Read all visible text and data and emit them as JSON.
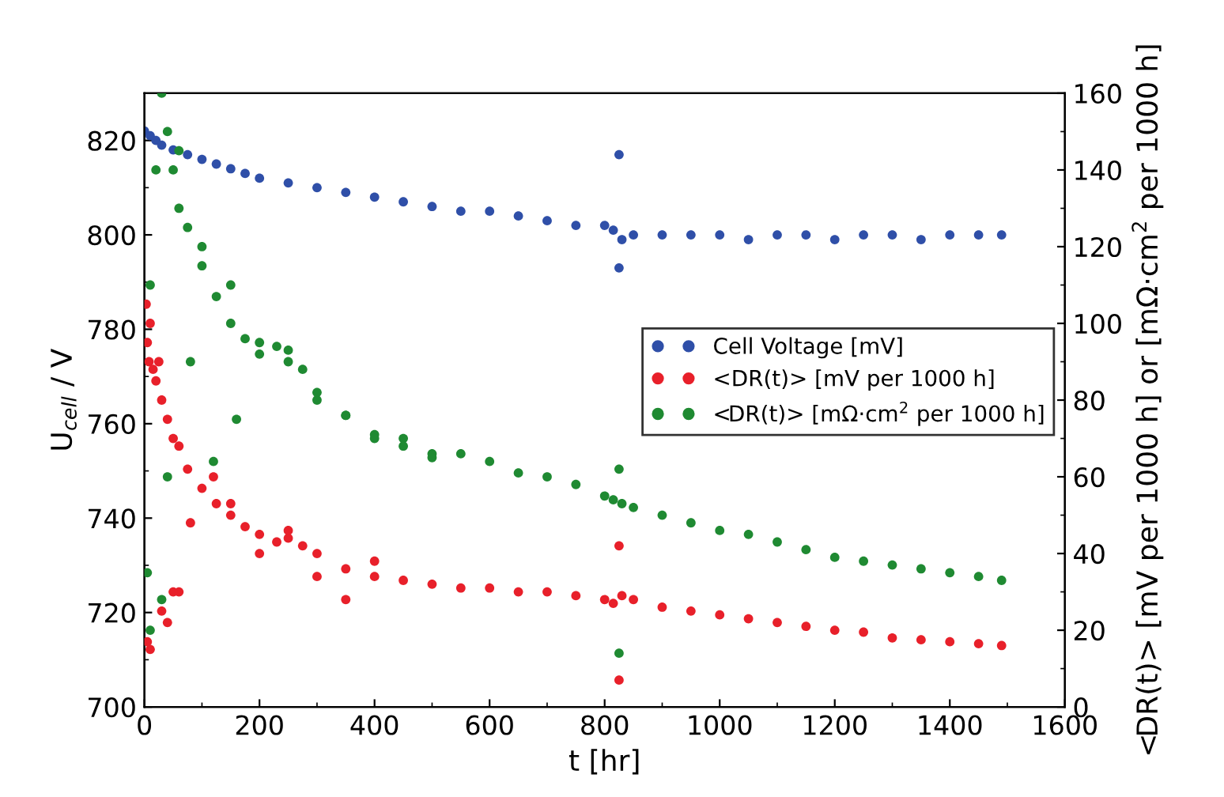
{
  "chart_data": {
    "type": "scatter",
    "xlabel": "t [hr]",
    "ylabel": "U$_{cell}$ / V",
    "y2label": "<DR(t)> [mV per 1000 h] or [mΩ·cm$^{2}$ per 1000 h]",
    "xlim": [
      0,
      1600
    ],
    "xticks": [
      0,
      200,
      400,
      600,
      800,
      1000,
      1200,
      1400,
      1600
    ],
    "ylim": [
      700,
      830
    ],
    "yticks": [
      700,
      720,
      740,
      760,
      780,
      800,
      820
    ],
    "y2lim": [
      0,
      160
    ],
    "y2ticks": [
      0,
      20,
      40,
      60,
      80,
      100,
      120,
      140,
      160
    ],
    "legend": "center right",
    "marker": "circle",
    "grid": false,
    "series": [
      {
        "name": "Cell Voltage [mV]",
        "color": "#2f4fa8",
        "x": [
          0,
          10,
          20,
          30,
          50,
          75,
          100,
          125,
          150,
          175,
          200,
          250,
          300,
          350,
          400,
          450,
          500,
          550,
          600,
          650,
          700,
          750,
          800,
          815,
          825,
          825,
          830,
          850,
          900,
          950,
          1000,
          1050,
          1100,
          1150,
          1200,
          1250,
          1300,
          1350,
          1400,
          1450,
          1490
        ],
        "values": [
          822,
          821,
          820,
          819,
          818,
          817,
          816,
          815,
          814,
          813,
          812,
          811,
          810,
          809,
          808,
          807,
          806,
          805,
          805,
          804,
          803,
          802,
          802,
          801,
          817,
          793,
          799,
          800,
          800,
          800,
          800,
          799,
          800,
          800,
          799,
          800,
          800,
          799,
          800,
          800,
          800
        ]
      },
      {
        "name": "<DR(t)> [mV per 1000 h]",
        "color": "#e8202a",
        "axis": "y2",
        "x": [
          3,
          5,
          8,
          10,
          15,
          20,
          25,
          30,
          40,
          50,
          60,
          75,
          100,
          125,
          150,
          175,
          200,
          230,
          250,
          275,
          300,
          350,
          400,
          450,
          500,
          550,
          600,
          650,
          700,
          750,
          800,
          815,
          825,
          825,
          830,
          850,
          900,
          950,
          1000,
          1050,
          1100,
          1150,
          1200,
          1250,
          1300,
          1350,
          1400,
          1450,
          1490,
          10,
          30,
          60,
          40,
          80,
          120,
          150,
          200,
          250,
          300,
          350,
          400,
          5,
          50
        ],
        "values": [
          105,
          95,
          90,
          100,
          88,
          85,
          90,
          80,
          75,
          70,
          68,
          62,
          57,
          53,
          50,
          47,
          45,
          43,
          44,
          42,
          40,
          36,
          34,
          33,
          32,
          31,
          31,
          30,
          30,
          29,
          28,
          27,
          42,
          7,
          29,
          28,
          26,
          25,
          24,
          23,
          22,
          21,
          20,
          19.5,
          18,
          17.5,
          17,
          16.5,
          16,
          15,
          25,
          30,
          22,
          48,
          60,
          53,
          40,
          46,
          34,
          28,
          38,
          17,
          30
        ]
      },
      {
        "name": "<DR(t)> [mΩ·cm$^{2}$ per 1000 h]",
        "color": "#1f8a32",
        "axis": "y2",
        "x": [
          5,
          10,
          20,
          30,
          40,
          50,
          60,
          75,
          100,
          125,
          150,
          175,
          200,
          230,
          250,
          275,
          300,
          350,
          400,
          450,
          500,
          550,
          600,
          650,
          700,
          750,
          800,
          815,
          825,
          825,
          830,
          850,
          900,
          950,
          1000,
          1050,
          1100,
          1150,
          1200,
          1250,
          1300,
          1350,
          1400,
          1450,
          1490,
          60,
          100,
          150,
          200,
          250,
          300,
          350,
          400,
          450,
          500,
          40,
          80,
          120,
          160,
          10,
          30
        ],
        "values": [
          35,
          110,
          140,
          160,
          150,
          140,
          130,
          125,
          115,
          107,
          100,
          96,
          92,
          94,
          93,
          88,
          80,
          76,
          71,
          70,
          66,
          66,
          64,
          61,
          60,
          58,
          55,
          54,
          62,
          14,
          53,
          52,
          50,
          48,
          46,
          45,
          43,
          41,
          39,
          38,
          37,
          36,
          35,
          34,
          33,
          145,
          120,
          110,
          95,
          90,
          82,
          76,
          70,
          68,
          65,
          60,
          90,
          64,
          75,
          20,
          28
        ]
      }
    ]
  }
}
